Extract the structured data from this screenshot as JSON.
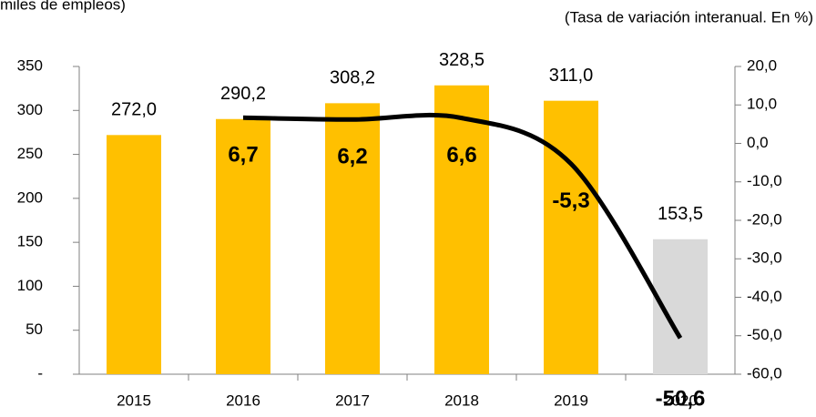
{
  "chart_data": {
    "type": "bar-line",
    "subtitle_left": "miles de empleos)",
    "subtitle_right": "(Tasa de variación interanual. En %)",
    "categories": [
      "2015",
      "2016",
      "2017",
      "2018",
      "2019",
      "2020"
    ],
    "series": [
      {
        "type": "bar",
        "values": [
          272.0,
          290.2,
          308.2,
          328.5,
          311.0,
          153.5
        ],
        "value_labels": [
          "272,0",
          "290,2",
          "308,2",
          "328,5",
          "311,0",
          "153,5"
        ],
        "colors": [
          "#FFC000",
          "#FFC000",
          "#FFC000",
          "#FFC000",
          "#FFC000",
          "#D9D9D9"
        ]
      },
      {
        "type": "line",
        "axis": "y2",
        "color": "#000000",
        "values": [
          null,
          6.7,
          6.2,
          6.6,
          -5.3,
          -50.6
        ],
        "value_labels": [
          null,
          "6,7",
          "6,2",
          "6,6",
          "-5,3",
          "-50,6"
        ]
      }
    ],
    "ylim": [
      0,
      350
    ],
    "yticks": [
      {
        "value": 0,
        "label": "-"
      },
      50,
      100,
      150,
      200,
      250,
      300,
      350
    ],
    "y2lim": [
      -60,
      20
    ],
    "y2ticks": [
      {
        "value": -60,
        "label": "-60,0"
      },
      {
        "value": -50,
        "label": "-50,0"
      },
      {
        "value": -40,
        "label": "-40,0"
      },
      {
        "value": -30,
        "label": "-30,0"
      },
      {
        "value": -20,
        "label": "-20,0"
      },
      {
        "value": -10,
        "label": "-10,0"
      },
      {
        "value": 0,
        "label": "0,0"
      },
      {
        "value": 10,
        "label": "10,0"
      },
      {
        "value": 20,
        "label": "20,0"
      }
    ]
  }
}
